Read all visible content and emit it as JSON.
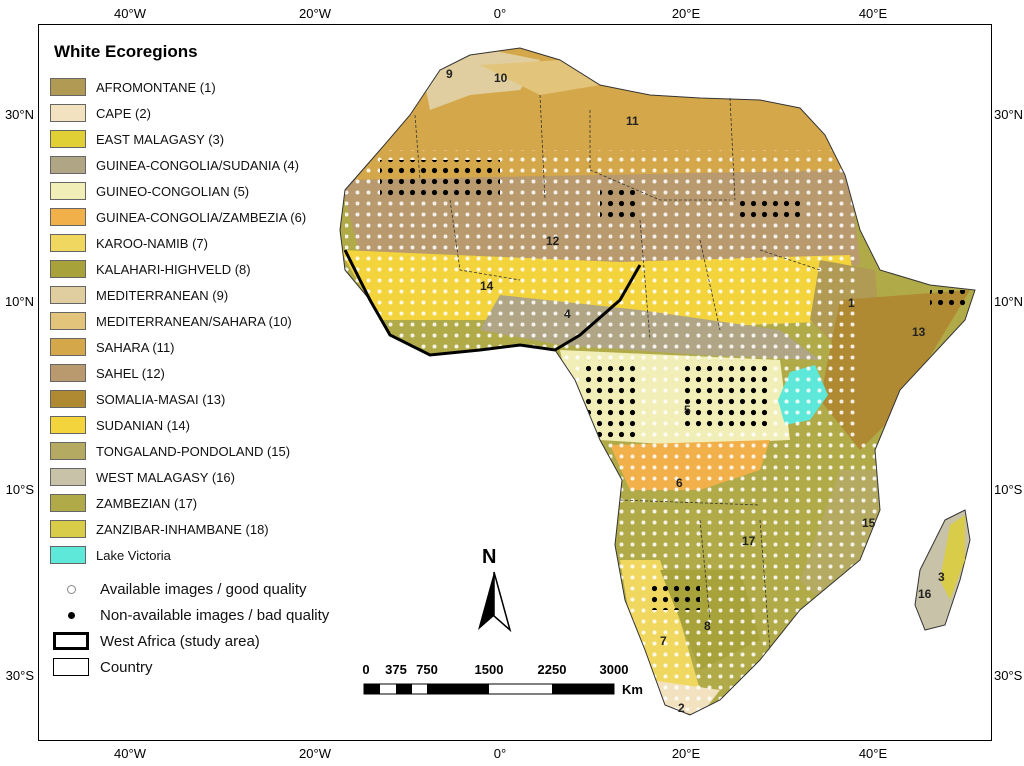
{
  "axes": {
    "top": [
      "40°W",
      "20°W",
      "0°",
      "20°E",
      "40°E"
    ],
    "bottom": [
      "40°W",
      "20°W",
      "0°",
      "20°E",
      "40°E"
    ],
    "left": [
      "30°N",
      "10°N",
      "10°S",
      "30°S"
    ],
    "right": [
      "30°N",
      "10°N",
      "10°S",
      "30°S"
    ]
  },
  "legend": {
    "title": "White Ecoregions",
    "items": [
      {
        "label": "AFROMONTANE (1)",
        "color": "#b09a54"
      },
      {
        "label": "CAPE (2)",
        "color": "#f2e2c0"
      },
      {
        "label": "EAST MALAGASY (3)",
        "color": "#e0d035"
      },
      {
        "label": "GUINEA-CONGOLIA/SUDANIA (4)",
        "color": "#b0a584"
      },
      {
        "label": "GUINEO-CONGOLIAN (5)",
        "color": "#f2eeb8"
      },
      {
        "label": "GUINEA-CONGOLIA/ZAMBEZIA (6)",
        "color": "#f2b04a"
      },
      {
        "label": "KAROO-NAMIB (7)",
        "color": "#f0d860"
      },
      {
        "label": "KALAHARI-HIGHVELD (8)",
        "color": "#a8a23a"
      },
      {
        "label": "MEDITERRANEAN (9)",
        "color": "#e0cea0"
      },
      {
        "label": "MEDITERRANEAN/SAHARA (10)",
        "color": "#e2c47a"
      },
      {
        "label": "SAHARA (11)",
        "color": "#d4a84a"
      },
      {
        "label": "SAHEL (12)",
        "color": "#b89a6e"
      },
      {
        "label": "SOMALIA-MASAI (13)",
        "color": "#b08a32"
      },
      {
        "label": "SUDANIAN (14)",
        "color": "#f4d43c"
      },
      {
        "label": "TONGALAND-PONDOLAND (15)",
        "color": "#b4aa62"
      },
      {
        "label": "WEST MALAGASY  (16)",
        "color": "#c8c2a8"
      },
      {
        "label": "ZAMBEZIAN (17)",
        "color": "#b0aa48"
      },
      {
        "label": "ZANZIBAR-INHAMBANE (18)",
        "color": "#d8cc48"
      },
      {
        "label": "Lake Victoria",
        "color": "#5ee8da"
      }
    ],
    "symbols": [
      {
        "label": "Available images / good quality",
        "icon": "open-circle"
      },
      {
        "label": "Non-available images / bad quality",
        "icon": "filled-circle"
      },
      {
        "label": "West Africa (study area)",
        "icon": "thick-box"
      },
      {
        "label": "Country",
        "icon": "thin-box"
      }
    ]
  },
  "north_arrow": {
    "label": "N"
  },
  "scale_bar": {
    "ticks": [
      "0",
      "375",
      "750",
      "1500",
      "2250",
      "3000"
    ],
    "unit": "Km"
  },
  "region_labels": [
    "9",
    "10",
    "11",
    "12",
    "14",
    "4",
    "5",
    "1",
    "13",
    "6",
    "17",
    "15",
    "3",
    "16",
    "7",
    "8",
    "2"
  ]
}
